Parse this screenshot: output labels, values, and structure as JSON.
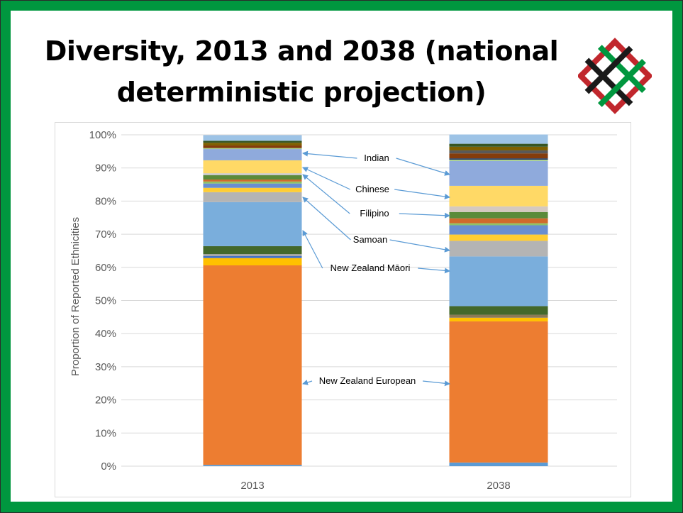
{
  "slide": {
    "title_line1": "Diversity, 2013 and 2038 (national",
    "title_line2": "deterministic projection)",
    "logo_icon": "woven-diamond-logo-icon",
    "colors": {
      "frame": "#00973f",
      "logo_red": "#c1272d",
      "logo_green": "#00973f",
      "logo_black": "#1a1a1a"
    }
  },
  "chart_data": {
    "type": "bar",
    "stacked": true,
    "normalized": true,
    "title": "",
    "xlabel": "",
    "ylabel": "Proportion of Reported Ethnicities",
    "ylim": [
      0,
      100
    ],
    "yticks": [
      "0%",
      "10%",
      "20%",
      "30%",
      "40%",
      "50%",
      "60%",
      "70%",
      "80%",
      "90%",
      "100%"
    ],
    "grid": true,
    "categories": [
      "2013",
      "2038"
    ],
    "segment_order": "bottom-to-top",
    "stacks": [
      {
        "category": "2013",
        "segments": [
          {
            "label": "",
            "value": 0.4,
            "color": "#5b9bd5"
          },
          {
            "label": "New Zealand European",
            "value": 60.2,
            "color": "#ed7d31"
          },
          {
            "label": "",
            "value": 2.2,
            "color": "#ffc000"
          },
          {
            "label": "",
            "value": 0.6,
            "color": "#4472c4"
          },
          {
            "label": "",
            "value": 0.6,
            "color": "#a5a5a5"
          },
          {
            "label": "",
            "value": 2.4,
            "color": "#43682b"
          },
          {
            "label": "New Zealand Māori",
            "value": 13.3,
            "color": "#7aaedc"
          },
          {
            "label": "Samoan",
            "value": 3.0,
            "color": "#b4b4b4"
          },
          {
            "label": "",
            "value": 1.3,
            "color": "#ffcd33"
          },
          {
            "label": "",
            "value": 1.3,
            "color": "#698ed0"
          },
          {
            "label": "",
            "value": 0.6,
            "color": "#8fc266"
          },
          {
            "label": "",
            "value": 0.6,
            "color": "#d06a2c"
          },
          {
            "label": "Filipino",
            "value": 1.3,
            "color": "#5b8b3a"
          },
          {
            "label": "",
            "value": 0.6,
            "color": "#c9c9c9"
          },
          {
            "label": "Chinese",
            "value": 3.9,
            "color": "#ffd966"
          },
          {
            "label": "Indian",
            "value": 3.4,
            "color": "#8faadc"
          },
          {
            "label": "",
            "value": 0.3,
            "color": "#a9d18e"
          },
          {
            "label": "",
            "value": 0.8,
            "color": "#843c0c"
          },
          {
            "label": "",
            "value": 0.8,
            "color": "#7f6000"
          },
          {
            "label": "",
            "value": 0.6,
            "color": "#375623"
          },
          {
            "label": "",
            "value": 1.7,
            "color": "#9dc3e6"
          }
        ]
      },
      {
        "category": "2038",
        "segments": [
          {
            "label": "",
            "value": 1.1,
            "color": "#5b9bd5"
          },
          {
            "label": "New Zealand European",
            "value": 42.6,
            "color": "#ed7d31"
          },
          {
            "label": "",
            "value": 1.1,
            "color": "#ffc000"
          },
          {
            "label": "",
            "value": 0.9,
            "color": "#8c7a55"
          },
          {
            "label": "",
            "value": 2.6,
            "color": "#43682b"
          },
          {
            "label": "New Zealand Māori",
            "value": 15.0,
            "color": "#7aaedc"
          },
          {
            "label": "Samoan",
            "value": 4.7,
            "color": "#b4b4b4"
          },
          {
            "label": "",
            "value": 1.9,
            "color": "#ffcd33"
          },
          {
            "label": "",
            "value": 2.8,
            "color": "#698ed0"
          },
          {
            "label": "",
            "value": 0.6,
            "color": "#8fc266"
          },
          {
            "label": "",
            "value": 1.5,
            "color": "#d06a2c"
          },
          {
            "label": "Filipino",
            "value": 1.9,
            "color": "#5b8b3a"
          },
          {
            "label": "",
            "value": 1.7,
            "color": "#d5c9c0"
          },
          {
            "label": "Chinese",
            "value": 6.2,
            "color": "#ffd966"
          },
          {
            "label": "Indian",
            "value": 7.5,
            "color": "#8faadc"
          },
          {
            "label": "",
            "value": 0.4,
            "color": "#a9d18e"
          },
          {
            "label": "",
            "value": 0.4,
            "color": "#203864"
          },
          {
            "label": "",
            "value": 1.5,
            "color": "#843c0c"
          },
          {
            "label": "",
            "value": 0.9,
            "color": "#595959"
          },
          {
            "label": "",
            "value": 1.1,
            "color": "#7f6000"
          },
          {
            "label": "",
            "value": 0.9,
            "color": "#375623"
          },
          {
            "label": "",
            "value": 2.8,
            "color": "#9dc3e6"
          }
        ]
      }
    ],
    "annotations": [
      {
        "text": "Indian",
        "points_to": "Indian"
      },
      {
        "text": "Chinese",
        "points_to": "Chinese"
      },
      {
        "text": "Filipino",
        "points_to": "Filipino"
      },
      {
        "text": "Samoan",
        "points_to": "Samoan"
      },
      {
        "text": "New Zealand Māori",
        "points_to": "New Zealand Māori"
      },
      {
        "text": "New Zealand European",
        "points_to": "New Zealand European"
      }
    ],
    "annotation_arrow_color": "#5b9bd5"
  }
}
